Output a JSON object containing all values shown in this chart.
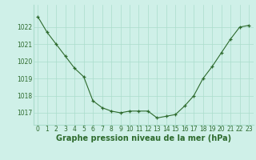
{
  "x": [
    0,
    1,
    2,
    3,
    4,
    5,
    6,
    7,
    8,
    9,
    10,
    11,
    12,
    13,
    14,
    15,
    16,
    17,
    18,
    19,
    20,
    21,
    22,
    23
  ],
  "y": [
    1022.6,
    1021.7,
    1021.0,
    1020.3,
    1019.6,
    1019.1,
    1017.7,
    1017.3,
    1017.1,
    1017.0,
    1017.1,
    1017.1,
    1017.1,
    1016.7,
    1016.8,
    1016.9,
    1017.4,
    1018.0,
    1019.0,
    1019.7,
    1020.5,
    1021.3,
    1022.0,
    1022.1
  ],
  "line_color": "#2d6a2d",
  "marker": "+",
  "bg_color": "#cff0e8",
  "grid_color": "#aaddcc",
  "xlabel": "Graphe pression niveau de la mer (hPa)",
  "ylabel_ticks": [
    1017,
    1018,
    1019,
    1020,
    1021,
    1022
  ],
  "ylim": [
    1016.3,
    1023.3
  ],
  "xlim": [
    -0.5,
    23.5
  ],
  "title_color": "#2d6a2d",
  "tick_fontsize": 5.5,
  "label_fontsize": 7.0
}
